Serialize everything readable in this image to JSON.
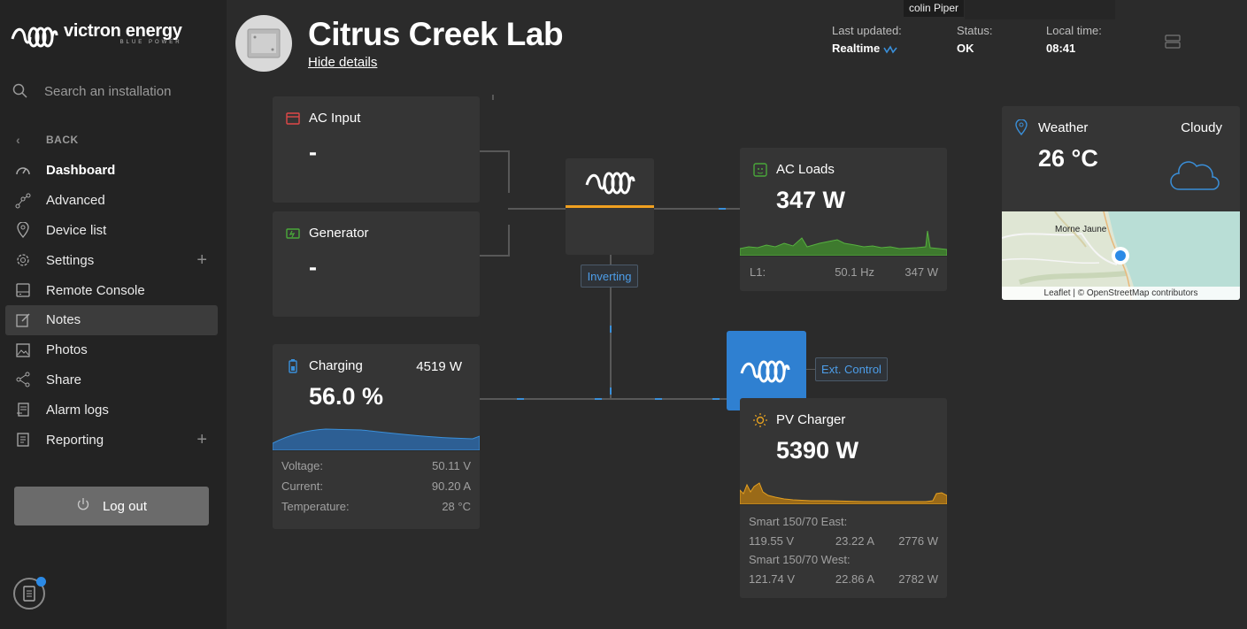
{
  "brand": {
    "name": "victron energy",
    "tagline": "BLUE POWER"
  },
  "sidebar": {
    "search_placeholder": "Search an installation",
    "back": "BACK",
    "items": [
      {
        "label": "Dashboard",
        "icon": "gauge-icon"
      },
      {
        "label": "Advanced",
        "icon": "graph-icon"
      },
      {
        "label": "Device list",
        "icon": "location-pin-icon"
      },
      {
        "label": "Settings",
        "icon": "gear-icon"
      },
      {
        "label": "Remote Console",
        "icon": "console-icon"
      },
      {
        "label": "Notes",
        "icon": "edit-icon"
      },
      {
        "label": "Photos",
        "icon": "photo-icon"
      },
      {
        "label": "Share",
        "icon": "share-icon"
      },
      {
        "label": "Alarm logs",
        "icon": "alarm-log-icon"
      },
      {
        "label": "Reporting",
        "icon": "report-icon"
      }
    ],
    "logout": "Log out"
  },
  "header": {
    "title": "Citrus Creek Lab",
    "hide_details": "Hide details",
    "last_updated_label": "Last updated:",
    "last_updated_value": "Realtime",
    "status_label": "Status:",
    "status_value": "OK",
    "local_time_label": "Local time:",
    "local_time_value": "08:41",
    "tooltip": "colin Piper"
  },
  "ac_input": {
    "title": "AC Input",
    "value": "-"
  },
  "generator": {
    "title": "Generator",
    "value": "-"
  },
  "inverter": {
    "state": "Inverting"
  },
  "ac_loads": {
    "title": "AC Loads",
    "value": "347 W",
    "line_label": "L1:",
    "frequency": "50.1 Hz",
    "power": "347 W"
  },
  "battery": {
    "title": "Charging",
    "power": "4519 W",
    "soc": "56.0 %",
    "soc_fraction": 0.56,
    "voltage_label": "Voltage:",
    "voltage": "50.11 V",
    "current_label": "Current:",
    "current": "90.20 A",
    "temp_label": "Temperature:",
    "temp": "28 °C"
  },
  "pv": {
    "badge": "Ext. Control",
    "title": "PV Charger",
    "value": "5390 W",
    "chargers": [
      {
        "name": "Smart 150/70 East:",
        "voltage": "119.55 V",
        "current": "23.22 A",
        "power": "2776 W"
      },
      {
        "name": "Smart 150/70 West:",
        "voltage": "121.74 V",
        "current": "22.86 A",
        "power": "2782 W"
      }
    ]
  },
  "weather": {
    "title": "Weather",
    "condition": "Cloudy",
    "temperature": "26 °C",
    "map_town": "Morne Jaune",
    "map_attribution": "Leaflet | © OpenStreetMap contributors"
  },
  "colors": {
    "accent_blue": "#2f80d1",
    "inverter_orange": "#f0a020",
    "pv_orange": "#e5a020",
    "ac_green": "#4a9a3a"
  }
}
